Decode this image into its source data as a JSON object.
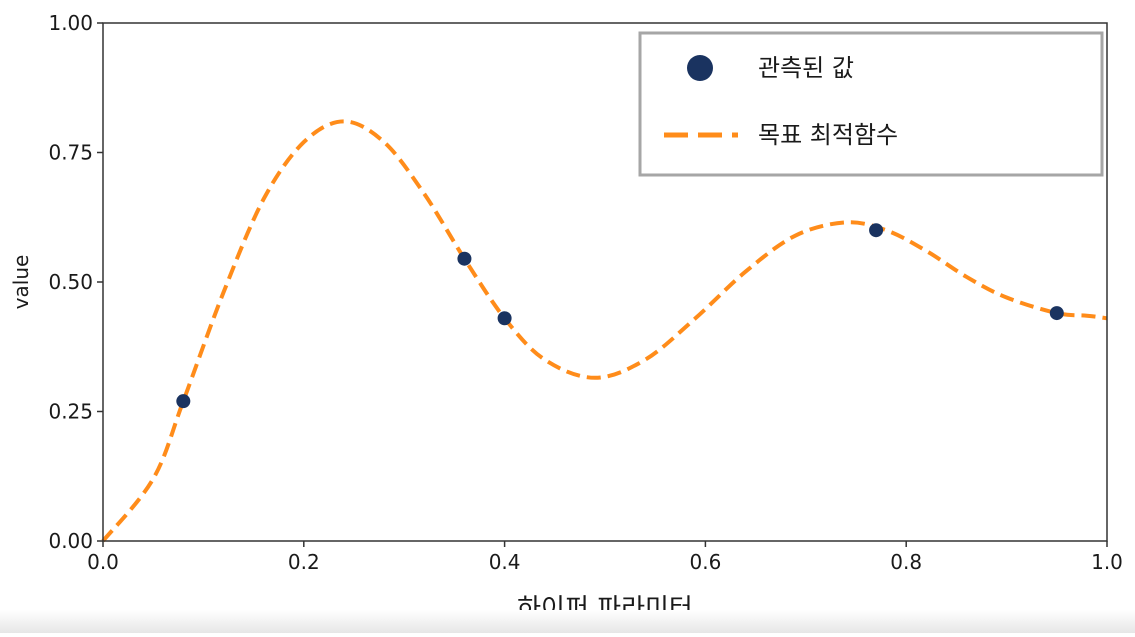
{
  "chart_data": {
    "type": "scatter",
    "title": "",
    "xlabel": "하이퍼 파라미터",
    "ylabel": "value",
    "xlim": [
      0.0,
      1.0
    ],
    "ylim": [
      0.0,
      1.0
    ],
    "x_ticks": [
      "0.0",
      "0.2",
      "0.4",
      "0.6",
      "0.8",
      "1.0"
    ],
    "y_ticks": [
      "0.00",
      "0.25",
      "0.50",
      "0.75",
      "1.00"
    ],
    "grid": false,
    "legend_position": "top-right",
    "series": [
      {
        "name": "관측된 값",
        "kind": "scatter",
        "color": "#1a3360",
        "x": [
          0.08,
          0.36,
          0.4,
          0.77,
          0.95
        ],
        "y": [
          0.27,
          0.545,
          0.43,
          0.6,
          0.44
        ]
      },
      {
        "name": "목표 최적함수",
        "kind": "line",
        "style": "dashed",
        "color": "#ff8c1a",
        "x": [
          0.0,
          0.05,
          0.08,
          0.12,
          0.16,
          0.2,
          0.24,
          0.28,
          0.32,
          0.36,
          0.4,
          0.44,
          0.49,
          0.54,
          0.59,
          0.64,
          0.69,
          0.74,
          0.78,
          0.82,
          0.86,
          0.9,
          0.95,
          0.98,
          1.0
        ],
        "y": [
          0.0,
          0.12,
          0.27,
          0.48,
          0.66,
          0.77,
          0.81,
          0.77,
          0.67,
          0.545,
          0.43,
          0.35,
          0.315,
          0.35,
          0.43,
          0.52,
          0.59,
          0.615,
          0.6,
          0.56,
          0.51,
          0.47,
          0.44,
          0.435,
          0.43
        ]
      }
    ]
  },
  "legend": {
    "items": [
      {
        "label": "관측된 값",
        "marker": "circle",
        "color": "#1a3360"
      },
      {
        "label": "목표 최적함수",
        "marker": "dashed-line",
        "color": "#ff8c1a"
      }
    ]
  }
}
